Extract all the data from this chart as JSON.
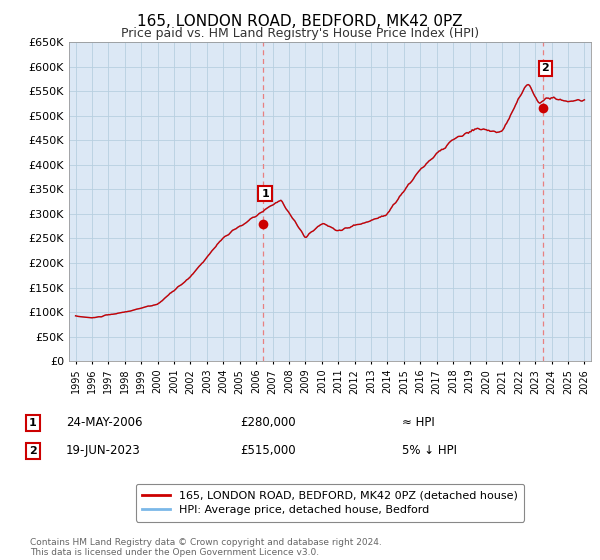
{
  "title": "165, LONDON ROAD, BEDFORD, MK42 0PZ",
  "subtitle": "Price paid vs. HM Land Registry's House Price Index (HPI)",
  "legend_line1": "165, LONDON ROAD, BEDFORD, MK42 0PZ (detached house)",
  "legend_line2": "HPI: Average price, detached house, Bedford",
  "annotation1_label": "1",
  "annotation1_date": "24-MAY-2006",
  "annotation1_price": "£280,000",
  "annotation1_hpi": "≈ HPI",
  "annotation2_label": "2",
  "annotation2_date": "19-JUN-2023",
  "annotation2_price": "£515,000",
  "annotation2_hpi": "5% ↓ HPI",
  "footer": "Contains HM Land Registry data © Crown copyright and database right 2024.\nThis data is licensed under the Open Government Licence v3.0.",
  "hpi_color": "#7bb8e8",
  "price_color": "#cc0000",
  "marker_color": "#cc0000",
  "dashed_color": "#e88080",
  "ylim_min": 0,
  "ylim_max": 650000,
  "ytick_step": 50000,
  "plot_bg_color": "#dce8f5",
  "fig_bg_color": "#ffffff",
  "grid_color": "#b8cfe0"
}
